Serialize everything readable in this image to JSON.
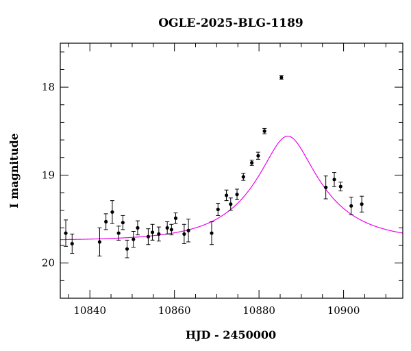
{
  "chart_data": {
    "type": "scatter",
    "title": "OGLE-2025-BLG-1189",
    "xlabel": "HJD - 2450000",
    "ylabel": "I magnitude",
    "xlim": [
      10833,
      10914
    ],
    "ylim": [
      20.4,
      17.5
    ],
    "y_inverted": true,
    "x_ticks": [
      10840,
      10860,
      10880,
      10900
    ],
    "y_ticks": [
      18,
      19,
      20
    ],
    "x_minor_step": 5,
    "y_minor_step": 0.2,
    "colors": {
      "points": "#000000",
      "model": "#ee00ee",
      "frame": "#000000"
    },
    "model": {
      "name": "",
      "type": "point-lens microlensing fit",
      "t0": 10886.8,
      "tE": 15.4,
      "u0": 0.35,
      "I_baseline": 19.745
    },
    "points": [
      {
        "x": 10834.3,
        "y": 19.66,
        "err": 0.15
      },
      {
        "x": 10835.8,
        "y": 19.78,
        "err": 0.11
      },
      {
        "x": 10842.3,
        "y": 19.76,
        "err": 0.16
      },
      {
        "x": 10843.8,
        "y": 19.53,
        "err": 0.09
      },
      {
        "x": 10845.3,
        "y": 19.42,
        "err": 0.13
      },
      {
        "x": 10846.8,
        "y": 19.66,
        "err": 0.08
      },
      {
        "x": 10847.8,
        "y": 19.54,
        "err": 0.08
      },
      {
        "x": 10848.8,
        "y": 19.84,
        "err": 0.1
      },
      {
        "x": 10850.3,
        "y": 19.73,
        "err": 0.09
      },
      {
        "x": 10851.3,
        "y": 19.6,
        "err": 0.08
      },
      {
        "x": 10853.8,
        "y": 19.7,
        "err": 0.09
      },
      {
        "x": 10854.8,
        "y": 19.65,
        "err": 0.09
      },
      {
        "x": 10856.3,
        "y": 19.67,
        "err": 0.08
      },
      {
        "x": 10858.3,
        "y": 19.6,
        "err": 0.07
      },
      {
        "x": 10859.3,
        "y": 19.62,
        "err": 0.06
      },
      {
        "x": 10860.3,
        "y": 19.49,
        "err": 0.06
      },
      {
        "x": 10862.3,
        "y": 19.67,
        "err": 0.11
      },
      {
        "x": 10863.3,
        "y": 19.63,
        "err": 0.13
      },
      {
        "x": 10868.8,
        "y": 19.66,
        "err": 0.13
      },
      {
        "x": 10870.3,
        "y": 19.39,
        "err": 0.07
      },
      {
        "x": 10872.3,
        "y": 19.23,
        "err": 0.06
      },
      {
        "x": 10873.3,
        "y": 19.33,
        "err": 0.07
      },
      {
        "x": 10874.8,
        "y": 19.22,
        "err": 0.06
      },
      {
        "x": 10876.3,
        "y": 19.02,
        "err": 0.04
      },
      {
        "x": 10878.3,
        "y": 18.86,
        "err": 0.03
      },
      {
        "x": 10879.8,
        "y": 18.78,
        "err": 0.04
      },
      {
        "x": 10881.3,
        "y": 18.5,
        "err": 0.03
      },
      {
        "x": 10885.3,
        "y": 17.89,
        "err": 0.02
      },
      {
        "x": 10895.8,
        "y": 19.14,
        "err": 0.13
      },
      {
        "x": 10897.8,
        "y": 19.05,
        "err": 0.08
      },
      {
        "x": 10899.3,
        "y": 19.13,
        "err": 0.05
      },
      {
        "x": 10901.8,
        "y": 19.35,
        "err": 0.1
      },
      {
        "x": 10904.3,
        "y": 19.33,
        "err": 0.09
      }
    ]
  }
}
